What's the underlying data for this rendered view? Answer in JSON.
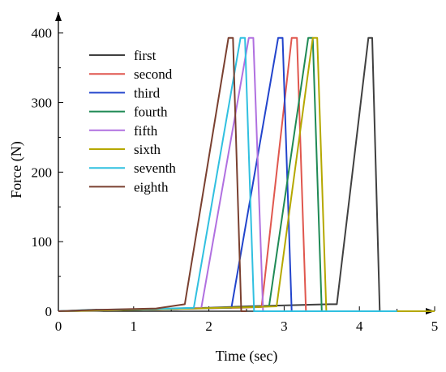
{
  "chart_data": {
    "type": "line",
    "xlabel": "Time (sec)",
    "ylabel": "Force (N)",
    "xlim": [
      0,
      5
    ],
    "ylim": [
      0,
      430
    ],
    "x_ticks": [
      0,
      1,
      2,
      3,
      4,
      5
    ],
    "y_ticks": [
      0,
      100,
      200,
      300,
      400
    ],
    "grid": false,
    "legend_position": "top-left",
    "series": [
      {
        "name": "first",
        "color": "#404040",
        "points": [
          [
            0,
            0
          ],
          [
            0.5,
            2
          ],
          [
            1.5,
            3
          ],
          [
            2.5,
            7
          ],
          [
            3.6,
            10
          ],
          [
            3.7,
            10
          ],
          [
            4.12,
            393
          ],
          [
            4.17,
            393
          ],
          [
            4.27,
            0
          ],
          [
            4.4,
            0
          ]
        ]
      },
      {
        "name": "second",
        "color": "#E0574E",
        "points": [
          [
            0,
            0
          ],
          [
            1,
            2
          ],
          [
            2.4,
            5
          ],
          [
            2.7,
            6
          ],
          [
            3.1,
            393
          ],
          [
            3.17,
            393
          ],
          [
            3.29,
            0
          ],
          [
            3.4,
            0
          ]
        ]
      },
      {
        "name": "third",
        "color": "#2244CC",
        "points": [
          [
            0,
            0
          ],
          [
            1,
            2
          ],
          [
            2.3,
            5
          ],
          [
            2.92,
            393
          ],
          [
            2.98,
            393
          ],
          [
            3.1,
            0
          ],
          [
            3.2,
            0
          ]
        ]
      },
      {
        "name": "fourth",
        "color": "#1F8A55",
        "points": [
          [
            0,
            0
          ],
          [
            1,
            2
          ],
          [
            2.6,
            6
          ],
          [
            2.8,
            7
          ],
          [
            3.32,
            393
          ],
          [
            3.38,
            393
          ],
          [
            3.5,
            0
          ],
          [
            3.6,
            0
          ]
        ]
      },
      {
        "name": "fifth",
        "color": "#B070E0",
        "points": [
          [
            0,
            0
          ],
          [
            1,
            2
          ],
          [
            1.9,
            5
          ],
          [
            2.53,
            393
          ],
          [
            2.59,
            393
          ],
          [
            2.72,
            0
          ],
          [
            2.8,
            0
          ]
        ]
      },
      {
        "name": "sixth",
        "color": "#B5A800",
        "points": [
          [
            0,
            0
          ],
          [
            1,
            2
          ],
          [
            2.6,
            6
          ],
          [
            2.9,
            7
          ],
          [
            3.38,
            393
          ],
          [
            3.44,
            393
          ],
          [
            3.56,
            0
          ],
          [
            5,
            0
          ]
        ]
      },
      {
        "name": "seventh",
        "color": "#30C0E0",
        "points": [
          [
            0,
            0
          ],
          [
            0.4,
            2
          ],
          [
            1.2,
            3
          ],
          [
            1.8,
            5
          ],
          [
            2.42,
            393
          ],
          [
            2.48,
            393
          ],
          [
            2.6,
            0
          ],
          [
            2.7,
            0
          ],
          [
            4.45,
            0
          ],
          [
            4.5,
            0
          ]
        ]
      },
      {
        "name": "eighth",
        "color": "#7A4030",
        "points": [
          [
            0,
            0
          ],
          [
            0.5,
            2
          ],
          [
            1.3,
            4
          ],
          [
            1.68,
            10
          ],
          [
            2.26,
            393
          ],
          [
            2.32,
            393
          ],
          [
            2.43,
            0
          ],
          [
            2.5,
            0
          ]
        ]
      }
    ]
  }
}
